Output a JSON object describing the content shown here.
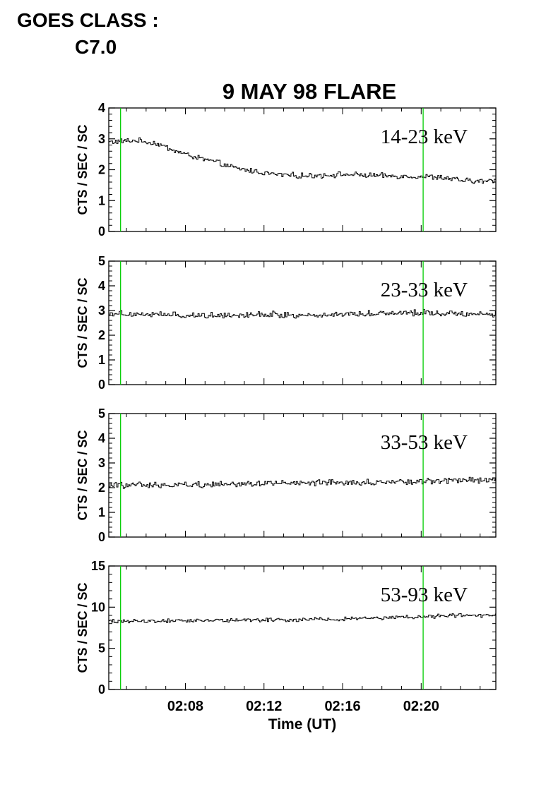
{
  "header": {
    "goes_label": "GOES CLASS :",
    "goes_value": "C7.0"
  },
  "colors": {
    "axes": "#000000",
    "trace": "#000000",
    "marker_line": "#00cc00",
    "background": "#ffffff"
  },
  "chart_data": {
    "type": "line",
    "title": "9 MAY 98 FLARE",
    "xlabel": "Time (UT)",
    "x_tick_labels": [
      "02:08",
      "02:12",
      "02:16",
      "02:20"
    ],
    "x_ticks_min": [
      488,
      492,
      496,
      500
    ],
    "xlim_min": [
      484.1,
      503.8
    ],
    "x_unit": "minutes after 00:00 UT",
    "marker_lines_min": [
      484.7,
      500.1
    ],
    "marker_color": "#00cc00",
    "grid": false,
    "panels": [
      {
        "name": "14-23 keV",
        "ylabel": "CTS / SEC / SC",
        "ylim": [
          0,
          4
        ],
        "yticks": [
          0,
          1,
          2,
          3,
          4
        ],
        "profile": [
          [
            484.1,
            2.9
          ],
          [
            485.5,
            2.95
          ],
          [
            486.5,
            2.85
          ],
          [
            487.5,
            2.6
          ],
          [
            488.5,
            2.4
          ],
          [
            489.5,
            2.25
          ],
          [
            490.5,
            2.05
          ],
          [
            491.5,
            1.95
          ],
          [
            492.5,
            1.85
          ],
          [
            494.0,
            1.8
          ],
          [
            496.0,
            1.85
          ],
          [
            498.0,
            1.8
          ],
          [
            500.0,
            1.78
          ],
          [
            501.0,
            1.75
          ],
          [
            502.0,
            1.65
          ],
          [
            503.0,
            1.62
          ],
          [
            503.8,
            1.65
          ]
        ],
        "noise": 0.07
      },
      {
        "name": "23-33 keV",
        "ylabel": "CTS / SEC / SC",
        "ylim": [
          0,
          5
        ],
        "yticks": [
          0,
          1,
          2,
          3,
          4,
          5
        ],
        "profile": [
          [
            484.1,
            2.9
          ],
          [
            486.0,
            2.85
          ],
          [
            488.0,
            2.8
          ],
          [
            490.0,
            2.82
          ],
          [
            492.0,
            2.85
          ],
          [
            494.0,
            2.8
          ],
          [
            496.0,
            2.85
          ],
          [
            498.0,
            2.9
          ],
          [
            500.0,
            2.92
          ],
          [
            502.0,
            2.88
          ],
          [
            503.8,
            2.85
          ]
        ],
        "noise": 0.1
      },
      {
        "name": "33-53 keV",
        "ylabel": "CTS / SEC / SC",
        "ylim": [
          0,
          5
        ],
        "yticks": [
          0,
          1,
          2,
          3,
          4,
          5
        ],
        "profile": [
          [
            484.1,
            2.1
          ],
          [
            486.0,
            2.1
          ],
          [
            488.0,
            2.12
          ],
          [
            490.0,
            2.15
          ],
          [
            492.0,
            2.18
          ],
          [
            494.0,
            2.17
          ],
          [
            496.0,
            2.2
          ],
          [
            498.0,
            2.22
          ],
          [
            500.0,
            2.25
          ],
          [
            502.0,
            2.3
          ],
          [
            503.8,
            2.32
          ]
        ],
        "noise": 0.1
      },
      {
        "name": "53-93 keV",
        "ylabel": "CTS / SEC / SC",
        "ylim": [
          0,
          15
        ],
        "yticks": [
          0,
          5,
          10,
          15
        ],
        "profile": [
          [
            484.1,
            8.3
          ],
          [
            486.0,
            8.3
          ],
          [
            488.0,
            8.35
          ],
          [
            490.0,
            8.4
          ],
          [
            492.0,
            8.45
          ],
          [
            494.0,
            8.5
          ],
          [
            496.0,
            8.6
          ],
          [
            498.0,
            8.7
          ],
          [
            500.0,
            8.85
          ],
          [
            502.0,
            9.0
          ],
          [
            503.8,
            8.95
          ]
        ],
        "noise": 0.18
      }
    ]
  }
}
